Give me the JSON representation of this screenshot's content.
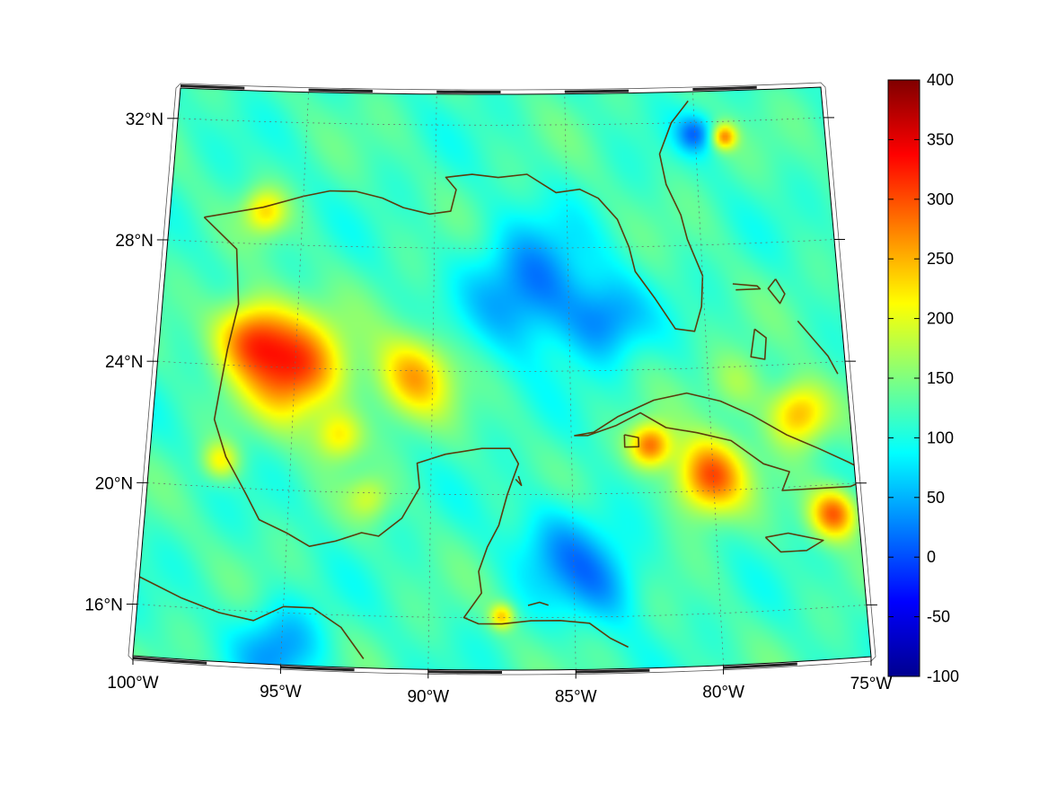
{
  "chart_data": {
    "type": "heatmap",
    "projection": "conic",
    "lon_ticks": [
      "100°W",
      "95°W",
      "90°W",
      "85°W",
      "80°W",
      "75°W"
    ],
    "lat_ticks": [
      "32°N",
      "28°N",
      "24°N",
      "20°N",
      "16°N"
    ],
    "lon_range": [
      -100,
      -75
    ],
    "lat_range": [
      14.3,
      33
    ],
    "grid": true,
    "colormap": "jet",
    "colorbar": {
      "min": -100,
      "max": 400,
      "ticks": [
        "400",
        "350",
        "300",
        "250",
        "200",
        "150",
        "100",
        "50",
        "0",
        "-50",
        "-100"
      ],
      "placement": "right"
    },
    "background_value": 120,
    "hotspots": [
      {
        "lon": -94.5,
        "lat": 24.0,
        "value": 310,
        "spread": 1.6
      },
      {
        "lon": -96.0,
        "lat": 25.0,
        "value": 270,
        "spread": 1.2
      },
      {
        "lon": -90.5,
        "lat": 23.7,
        "value": 250,
        "spread": 1.3
      },
      {
        "lon": -80.5,
        "lat": 20.5,
        "value": 300,
        "spread": 1.2
      },
      {
        "lon": -82.5,
        "lat": 21.5,
        "value": 280,
        "spread": 0.7
      },
      {
        "lon": -76.3,
        "lat": 19.3,
        "value": 290,
        "spread": 0.8
      },
      {
        "lon": -77.5,
        "lat": 22.5,
        "value": 260,
        "spread": 1.0
      },
      {
        "lon": -86.5,
        "lat": 26.5,
        "value": 20,
        "spread": 2.0
      },
      {
        "lon": -84.0,
        "lat": 25.5,
        "value": 40,
        "spread": 1.3
      },
      {
        "lon": -81.0,
        "lat": 31.5,
        "value": 30,
        "spread": 0.6
      },
      {
        "lon": -80.0,
        "lat": 31.4,
        "value": 260,
        "spread": 0.4
      },
      {
        "lon": -95.0,
        "lat": 15.0,
        "value": 40,
        "spread": 1.4
      },
      {
        "lon": -85.5,
        "lat": 18.2,
        "value": 50,
        "spread": 1.6
      },
      {
        "lon": -84.0,
        "lat": 17.0,
        "value": 60,
        "spread": 1.4
      },
      {
        "lon": -95.5,
        "lat": 29.0,
        "value": 220,
        "spread": 0.7
      },
      {
        "lon": -87.5,
        "lat": 16.0,
        "value": 230,
        "spread": 0.4
      },
      {
        "lon": -92.0,
        "lat": 19.8,
        "value": 180,
        "spread": 0.7
      },
      {
        "lon": -97.0,
        "lat": 21.0,
        "value": 210,
        "spread": 0.6
      },
      {
        "lon": -93.0,
        "lat": 21.8,
        "value": 220,
        "spread": 0.8
      },
      {
        "lon": -79.5,
        "lat": 23.5,
        "value": 170,
        "spread": 1.0
      }
    ],
    "land_outline_color": "#5a3c0c",
    "grid_color": "#6a6a6a"
  }
}
